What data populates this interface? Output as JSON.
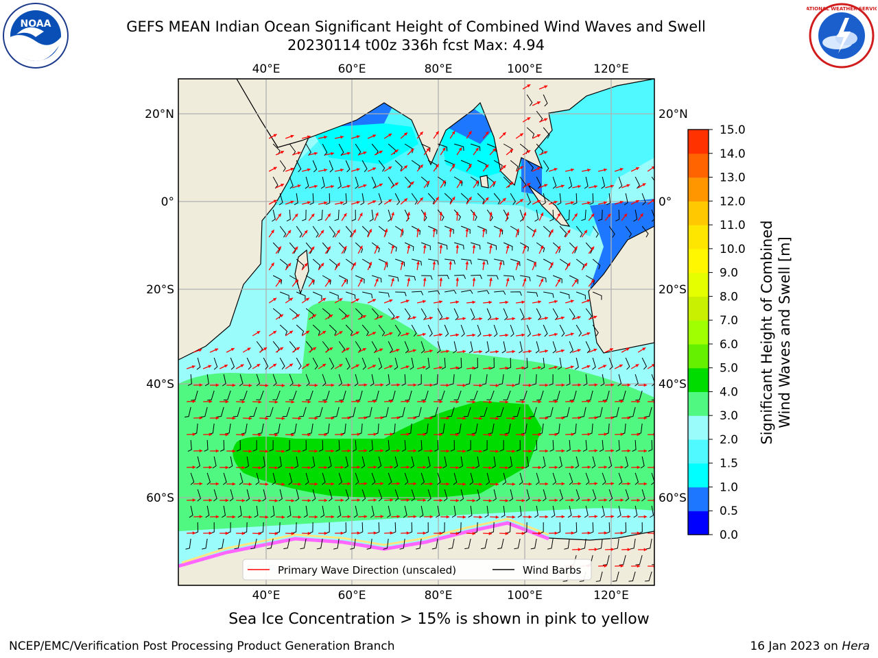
{
  "title_line1": "GEFS MEAN Indian Ocean Significant Height of Combined Wind Waves and Swell",
  "title_line2": "20230114 t00z 336h fcst   Max: 4.94",
  "map": {
    "lon_ticks": [
      "40°E",
      "60°E",
      "80°E",
      "100°E",
      "120°E"
    ],
    "lat_ticks": [
      "20°N",
      "0°",
      "20°S",
      "40°S",
      "60°S"
    ],
    "colors": {
      "land": "#efecdc",
      "grid": "#b0b0b0",
      "ice_pink": "#ff66ff",
      "ice_yellow": "#ffe680",
      "wave_arrow": "#ff0000",
      "wind_barb": "#000000"
    }
  },
  "legend": {
    "wave_label": "Primary Wave Direction (unscaled)",
    "wind_label": "Wind Barbs"
  },
  "colorbar": {
    "label_line1": "Significant Height of Combined",
    "label_line2": "Wind Waves and Swell [m]",
    "ticks": [
      "15.0",
      "14.0",
      "13.0",
      "12.0",
      "11.0",
      "10.0",
      "9.0",
      "8.0",
      "7.0",
      "6.0",
      "5.0",
      "4.0",
      "3.0",
      "2.0",
      "1.5",
      "1.0",
      "0.5",
      "0.0"
    ],
    "colors_bottom_to_top": [
      "#0000ff",
      "#1e78ff",
      "#00ffff",
      "#4ff9ff",
      "#9bfcfc",
      "#50f780",
      "#00dc00",
      "#64f000",
      "#a0ff00",
      "#c8f000",
      "#e6ff00",
      "#fff700",
      "#ffe600",
      "#ffc800",
      "#ff9600",
      "#ff6400",
      "#ff3200",
      "#ff0000"
    ]
  },
  "note": "Sea Ice Concentration > 15% is shown in pink to yellow",
  "footer_left": "NCEP/EMC/Verification Post Processing Product Generation Branch",
  "footer_right_prefix": "16 Jan 2023 on ",
  "footer_right_host": "Hera",
  "logos": {
    "noaa_text": "NOAA",
    "nws_text": "NATIONAL WEATHER SERVICE"
  }
}
